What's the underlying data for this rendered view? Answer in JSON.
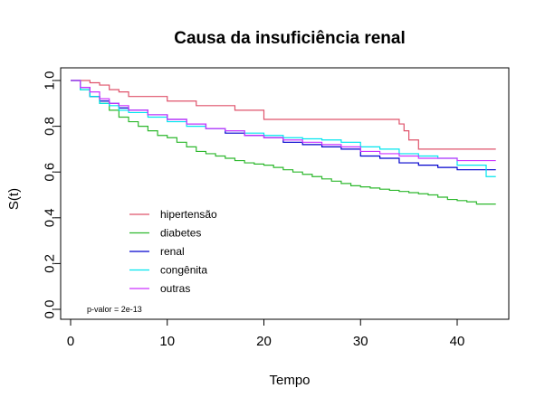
{
  "chart_data": {
    "type": "line",
    "subtype": "kaplan-meier step curves",
    "title": "Causa da insuficiência renal",
    "xlabel": "Tempo",
    "ylabel": "S(t)",
    "xlim": [
      0,
      44
    ],
    "ylim": [
      0,
      1
    ],
    "x_ticks": [
      "0",
      "10",
      "20",
      "30",
      "40"
    ],
    "y_ticks": [
      "0.0",
      "0.2",
      "0.4",
      "0.6",
      "0.8",
      "1.0"
    ],
    "grid": false,
    "legend_position": "bottom-left",
    "annotation": "p-valor = 2e-13",
    "series": [
      {
        "name": "hipertensão",
        "color": "#DF536B",
        "points": [
          [
            0,
            1.0
          ],
          [
            1,
            1.0
          ],
          [
            2,
            0.99
          ],
          [
            3,
            0.98
          ],
          [
            4,
            0.96
          ],
          [
            5,
            0.95
          ],
          [
            6,
            0.93
          ],
          [
            10,
            0.91
          ],
          [
            13,
            0.89
          ],
          [
            17,
            0.87
          ],
          [
            20,
            0.83
          ],
          [
            34,
            0.81
          ],
          [
            34.5,
            0.78
          ],
          [
            35,
            0.74
          ],
          [
            36,
            0.7
          ],
          [
            44,
            0.7
          ]
        ]
      },
      {
        "name": "diabetes",
        "color": "#2DB82D",
        "points": [
          [
            0,
            1.0
          ],
          [
            1,
            0.96
          ],
          [
            2,
            0.93
          ],
          [
            3,
            0.9
          ],
          [
            4,
            0.87
          ],
          [
            5,
            0.84
          ],
          [
            6,
            0.82
          ],
          [
            7,
            0.8
          ],
          [
            8,
            0.78
          ],
          [
            9,
            0.76
          ],
          [
            10,
            0.75
          ],
          [
            11,
            0.73
          ],
          [
            12,
            0.71
          ],
          [
            13,
            0.69
          ],
          [
            14,
            0.68
          ],
          [
            15,
            0.67
          ],
          [
            16,
            0.66
          ],
          [
            17,
            0.65
          ],
          [
            18,
            0.64
          ],
          [
            19,
            0.635
          ],
          [
            20,
            0.63
          ],
          [
            21,
            0.62
          ],
          [
            22,
            0.61
          ],
          [
            23,
            0.6
          ],
          [
            24,
            0.59
          ],
          [
            25,
            0.58
          ],
          [
            26,
            0.57
          ],
          [
            27,
            0.56
          ],
          [
            28,
            0.55
          ],
          [
            29,
            0.54
          ],
          [
            30,
            0.535
          ],
          [
            31,
            0.53
          ],
          [
            32,
            0.525
          ],
          [
            33,
            0.52
          ],
          [
            34,
            0.515
          ],
          [
            35,
            0.51
          ],
          [
            36,
            0.505
          ],
          [
            37,
            0.5
          ],
          [
            38,
            0.49
          ],
          [
            39,
            0.48
          ],
          [
            40,
            0.475
          ],
          [
            41,
            0.47
          ],
          [
            42,
            0.46
          ],
          [
            44,
            0.46
          ]
        ]
      },
      {
        "name": "renal",
        "color": "#0000CD",
        "points": [
          [
            0,
            1.0
          ],
          [
            1,
            0.97
          ],
          [
            2,
            0.93
          ],
          [
            3,
            0.91
          ],
          [
            4,
            0.9
          ],
          [
            5,
            0.88
          ],
          [
            6,
            0.87
          ],
          [
            8,
            0.85
          ],
          [
            10,
            0.83
          ],
          [
            12,
            0.81
          ],
          [
            14,
            0.79
          ],
          [
            16,
            0.77
          ],
          [
            18,
            0.76
          ],
          [
            20,
            0.75
          ],
          [
            22,
            0.73
          ],
          [
            24,
            0.72
          ],
          [
            26,
            0.71
          ],
          [
            28,
            0.7
          ],
          [
            30,
            0.67
          ],
          [
            32,
            0.66
          ],
          [
            34,
            0.64
          ],
          [
            36,
            0.63
          ],
          [
            38,
            0.62
          ],
          [
            40,
            0.61
          ],
          [
            44,
            0.61
          ]
        ]
      },
      {
        "name": "congênita",
        "color": "#00E5EE",
        "points": [
          [
            0,
            1.0
          ],
          [
            1,
            0.96
          ],
          [
            2,
            0.93
          ],
          [
            3,
            0.9
          ],
          [
            4,
            0.89
          ],
          [
            5,
            0.87
          ],
          [
            6,
            0.86
          ],
          [
            8,
            0.84
          ],
          [
            10,
            0.82
          ],
          [
            12,
            0.8
          ],
          [
            14,
            0.79
          ],
          [
            16,
            0.78
          ],
          [
            18,
            0.77
          ],
          [
            20,
            0.76
          ],
          [
            22,
            0.75
          ],
          [
            24,
            0.745
          ],
          [
            26,
            0.74
          ],
          [
            28,
            0.73
          ],
          [
            30,
            0.71
          ],
          [
            32,
            0.7
          ],
          [
            34,
            0.68
          ],
          [
            36,
            0.67
          ],
          [
            38,
            0.66
          ],
          [
            40,
            0.63
          ],
          [
            43,
            0.58
          ],
          [
            44,
            0.58
          ]
        ]
      },
      {
        "name": "outras",
        "color": "#CC33FF",
        "points": [
          [
            0,
            1.0
          ],
          [
            1,
            0.97
          ],
          [
            2,
            0.95
          ],
          [
            3,
            0.92
          ],
          [
            4,
            0.9
          ],
          [
            5,
            0.89
          ],
          [
            6,
            0.87
          ],
          [
            8,
            0.85
          ],
          [
            10,
            0.83
          ],
          [
            12,
            0.81
          ],
          [
            14,
            0.79
          ],
          [
            16,
            0.78
          ],
          [
            18,
            0.76
          ],
          [
            20,
            0.75
          ],
          [
            22,
            0.74
          ],
          [
            24,
            0.73
          ],
          [
            26,
            0.72
          ],
          [
            28,
            0.71
          ],
          [
            30,
            0.69
          ],
          [
            32,
            0.68
          ],
          [
            34,
            0.67
          ],
          [
            36,
            0.66
          ],
          [
            38,
            0.66
          ],
          [
            40,
            0.65
          ],
          [
            44,
            0.65
          ]
        ]
      }
    ]
  }
}
